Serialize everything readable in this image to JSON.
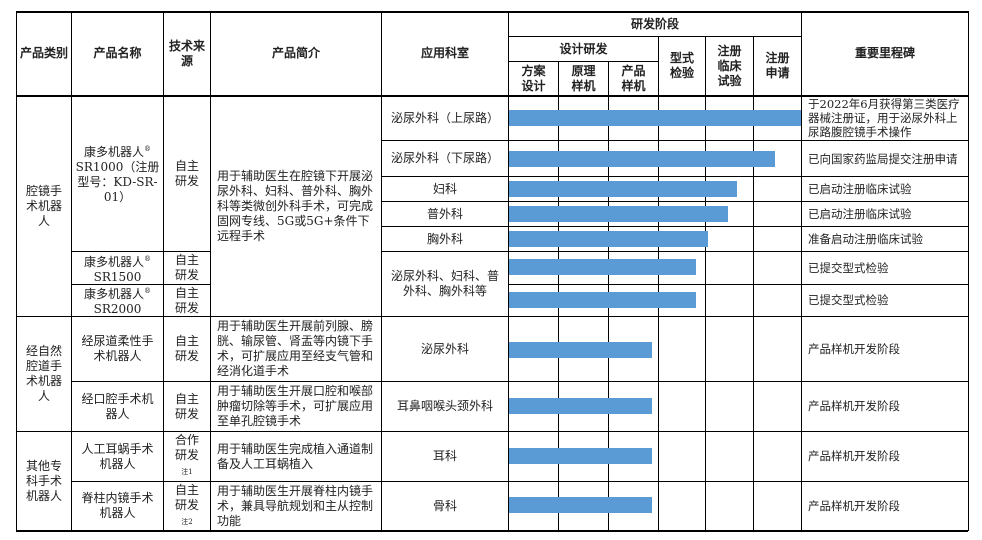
{
  "header": {
    "category": "产品类别",
    "name": "产品名称",
    "source": "技术来源",
    "intro": "产品简介",
    "dept": "应用科室",
    "stage": "研发阶段",
    "design": "设计研发",
    "plan": "方案设计",
    "proto": "原理样机",
    "sample": "产品样机",
    "typetest": "型式检验",
    "clinical": "注册临床试验",
    "apply": "注册申请",
    "milestone": "重要里程碑"
  },
  "groups": [
    {
      "category": "腔镜手术机器人"
    },
    {
      "category": "经自然腔道手术机器人"
    },
    {
      "category": "其他专科手术机器人"
    }
  ],
  "products": [
    {
      "name": "康多机器人",
      "sup": "®",
      "model": "SR1000（注册型号：KD-SR-01）",
      "source": "自主研发"
    },
    {
      "name": "康多机器人",
      "sup": "®",
      "model": "SR1500",
      "source": "自主研发"
    },
    {
      "name": "康多机器人",
      "sup": "®",
      "model": "SR2000",
      "source": "自主研发"
    },
    {
      "name": "经尿道柔性手术机器人",
      "source": "自主研发",
      "intro": "用于辅助医生开展前列腺、膀胱、输尿管、肾盂等内镜下手术，可扩展应用至经支气管和经消化道手术"
    },
    {
      "name": "经口腔手术机器人",
      "source": "自主研发",
      "intro": "用于辅助医生开展口腔和喉部肿瘤切除等手术，可扩展应用至单孔腔镜手术"
    },
    {
      "name": "人工耳蜗手术机器人",
      "source": "合作研发",
      "note": "注1",
      "intro": "用于辅助医生完成植入通道制备及人工耳蜗植入"
    },
    {
      "name": "脊柱内镜手术机器人",
      "source": "自主研发",
      "note": "注2",
      "intro": "用于辅助医生开展脊柱内镜手术，兼具导航规划和主从控制功能"
    }
  ],
  "sr_intro": "用于辅助医生在腔镜下开展泌尿外科、妇科、普外科、胸外科等类微创外科手术，可完成固网专线、5G或5G+条件下远程手术",
  "rows": [
    {
      "dept": "泌尿外科（上尿路）",
      "progress": 1.0,
      "milestone": "于2022年6月获得第三类医疗器械注册证，用于泌尿外科上尿路腹腔镜手术操作"
    },
    {
      "dept": "泌尿外科（下尿路）",
      "progress": 0.91,
      "milestone": "已向国家药监局提交注册申请"
    },
    {
      "dept": "妇科",
      "progress": 0.78,
      "milestone": "已启动注册临床试验"
    },
    {
      "dept": "普外科",
      "progress": 0.75,
      "milestone": "已启动注册临床试验"
    },
    {
      "dept": "胸外科",
      "progress": 0.68,
      "milestone": "准备启动注册临床试验"
    },
    {
      "dept": "泌尿外科、妇科、普外科、胸外科等",
      "progress": 0.64,
      "milestone": "已提交型式检验"
    },
    {
      "progress": 0.64,
      "milestone": "已提交型式检验"
    },
    {
      "dept": "泌尿外科",
      "progress": 0.49,
      "milestone": "产品样机开发阶段"
    },
    {
      "dept": "耳鼻咽喉头颈外科",
      "progress": 0.49,
      "milestone": "产品样机开发阶段"
    },
    {
      "dept": "耳科",
      "progress": 0.49,
      "milestone": "产品样机开发阶段"
    },
    {
      "dept": "骨科",
      "progress": 0.49,
      "milestone": "产品样机开发阶段"
    }
  ],
  "colors": {
    "bar": "#5b9bd5",
    "grid": "#000000"
  }
}
